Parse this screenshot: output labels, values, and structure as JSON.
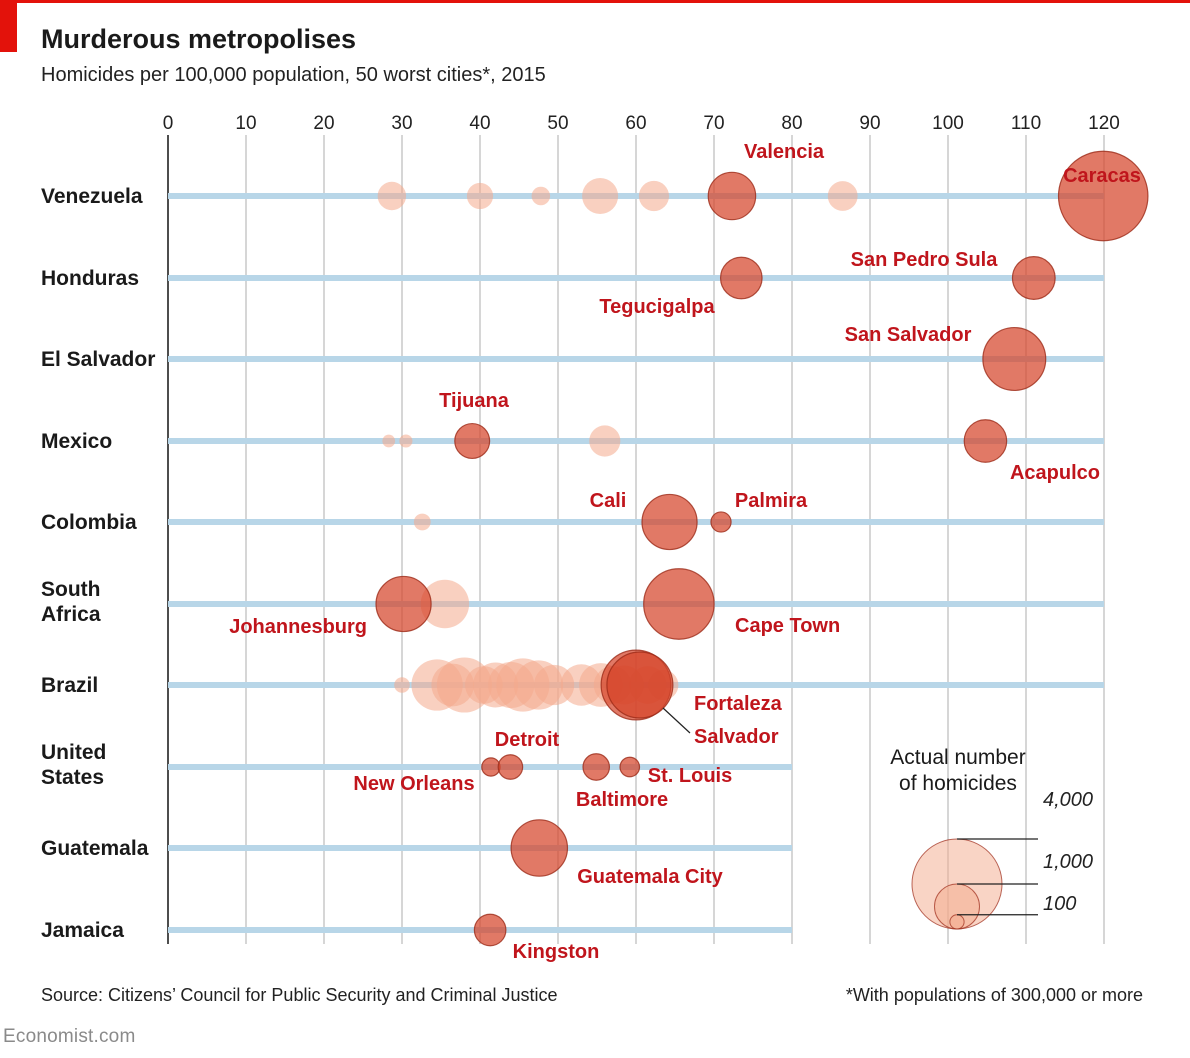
{
  "header": {
    "title": "Murderous metropolises",
    "subtitle": "Homicides per 100,000 population, 50 worst cities*, 2015"
  },
  "footer": {
    "source": "Source: Citizens’ Council for Public Security and Criminal Justice",
    "note": "*With populations of 300,000 or more",
    "brand": "Economist.com"
  },
  "colors": {
    "highlight": "#d5452b",
    "highlight_stroke": "#9c2a18",
    "other": "#f4a98c",
    "row_line": "#b8d6e8",
    "gridline": "#d6d6d6",
    "label": "#c0151c",
    "axis_text": "#222222"
  },
  "chart_data": {
    "type": "bubble",
    "x_axis": {
      "range": [
        0,
        120
      ],
      "ticks": [
        0,
        10,
        20,
        30,
        40,
        50,
        60,
        70,
        80,
        90,
        100,
        110,
        120
      ]
    },
    "size_legend": {
      "title": [
        "Actual number",
        "of homicides"
      ],
      "values": [
        4000,
        1000,
        100
      ],
      "labels": [
        "4,000",
        "1,000",
        "100"
      ]
    },
    "countries": [
      {
        "name": "Venezuela",
        "line_to": 120,
        "cities": [
          {
            "x": 28.7,
            "homicides": 400
          },
          {
            "x": 40.0,
            "homicides": 340
          },
          {
            "x": 47.8,
            "homicides": 170
          },
          {
            "x": 55.4,
            "homicides": 640
          },
          {
            "x": 62.3,
            "homicides": 450
          },
          {
            "name": "Valencia",
            "x": 72.3,
            "homicides": 1110,
            "highlight": true
          },
          {
            "x": 86.5,
            "homicides": 440
          },
          {
            "name": "Caracas",
            "x": 119.9,
            "homicides": 3950,
            "highlight": true
          }
        ]
      },
      {
        "name": "Honduras",
        "line_to": 120,
        "cities": [
          {
            "name": "Tegucigalpa",
            "x": 73.5,
            "homicides": 850,
            "highlight": true
          },
          {
            "name": "San Pedro Sula",
            "x": 111.0,
            "homicides": 900,
            "highlight": true
          }
        ]
      },
      {
        "name": "El Salvador",
        "line_to": 120,
        "cities": [
          {
            "name": "San Salvador",
            "x": 108.5,
            "homicides": 1950,
            "highlight": true
          }
        ]
      },
      {
        "name": "Mexico",
        "line_to": 120,
        "cities": [
          {
            "x": 28.3,
            "homicides": 80
          },
          {
            "x": 30.5,
            "homicides": 85
          },
          {
            "name": "Tijuana",
            "x": 39.0,
            "homicides": 600,
            "highlight": true
          },
          {
            "x": 56.0,
            "homicides": 480
          },
          {
            "name": "Acapulco",
            "x": 104.8,
            "homicides": 890,
            "highlight": true
          }
        ]
      },
      {
        "name": "Colombia",
        "line_to": 120,
        "cities": [
          {
            "x": 32.6,
            "homicides": 140
          },
          {
            "name": "Cali",
            "x": 64.3,
            "homicides": 1500,
            "highlight": true
          },
          {
            "name": "Palmira",
            "x": 70.9,
            "homicides": 200,
            "highlight": true
          }
        ]
      },
      {
        "name": "South Africa",
        "line_to": 120,
        "cities": [
          {
            "x": 35.5,
            "homicides": 1160
          },
          {
            "name": "Johannesburg",
            "x": 30.2,
            "homicides": 1500,
            "highlight": true
          },
          {
            "name": "Cape Town",
            "x": 65.5,
            "homicides": 2450,
            "highlight": true
          }
        ]
      },
      {
        "name": "Brazil",
        "line_to": 120,
        "cities": [
          {
            "x": 30.0,
            "homicides": 120
          },
          {
            "x": 34.5,
            "homicides": 1300
          },
          {
            "x": 36.5,
            "homicides": 900
          },
          {
            "x": 38.0,
            "homicides": 1500
          },
          {
            "x": 40.5,
            "homicides": 700
          },
          {
            "x": 42.0,
            "homicides": 1000
          },
          {
            "x": 44.0,
            "homicides": 1050
          },
          {
            "x": 45.5,
            "homicides": 1400
          },
          {
            "x": 47.5,
            "homicides": 1200
          },
          {
            "x": 49.5,
            "homicides": 800
          },
          {
            "x": 53.0,
            "homicides": 850
          },
          {
            "x": 55.5,
            "homicides": 950
          },
          {
            "x": 57.0,
            "homicides": 700
          },
          {
            "x": 58.5,
            "homicides": 750
          },
          {
            "x": 61.5,
            "homicides": 700
          },
          {
            "x": 63.5,
            "homicides": 450
          },
          {
            "name": "Fortaleza",
            "x": 60.0,
            "homicides": 2400,
            "highlight": true
          },
          {
            "name": "Salvador",
            "x": 60.5,
            "homicides": 2150,
            "highlight": true
          }
        ]
      },
      {
        "name": "United States",
        "line_to": 80,
        "cities": [
          {
            "name": "New Orleans",
            "x": 41.4,
            "homicides": 165,
            "highlight": true
          },
          {
            "name": "Detroit",
            "x": 43.9,
            "homicides": 295,
            "highlight": true
          },
          {
            "name": "Baltimore",
            "x": 54.9,
            "homicides": 345,
            "highlight": true
          },
          {
            "name": "St. Louis",
            "x": 59.2,
            "homicides": 188,
            "highlight": true
          }
        ]
      },
      {
        "name": "Guatemala",
        "line_to": 80,
        "cities": [
          {
            "name": "Guatemala City",
            "x": 47.6,
            "homicides": 1570,
            "highlight": true
          }
        ]
      },
      {
        "name": "Jamaica",
        "line_to": 80,
        "cities": [
          {
            "name": "Kingston",
            "x": 41.3,
            "homicides": 490,
            "highlight": true
          }
        ]
      }
    ]
  }
}
